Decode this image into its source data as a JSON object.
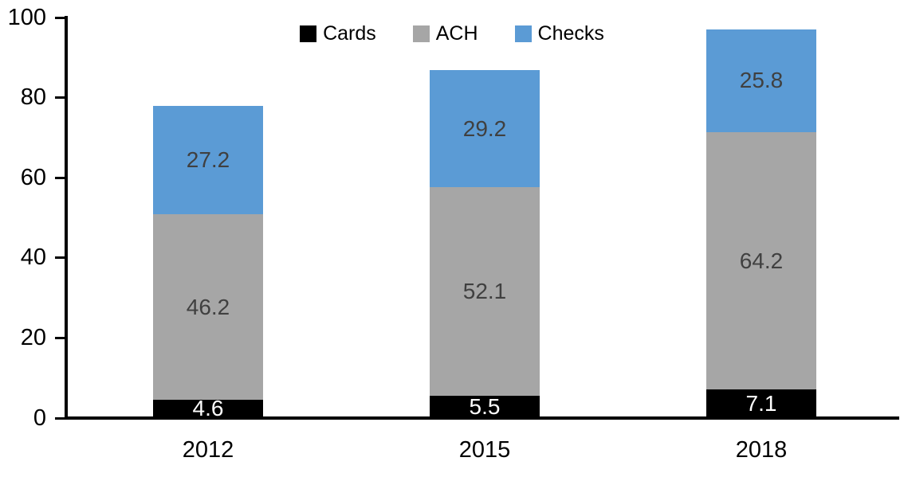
{
  "chart_data": {
    "type": "bar",
    "stacked": true,
    "title": "",
    "xlabel": "",
    "ylabel": "",
    "categories": [
      "2012",
      "2015",
      "2018"
    ],
    "series": [
      {
        "name": "Cards",
        "color": "#000000",
        "label_color": "#ffffff",
        "values": [
          4.6,
          5.5,
          7.1
        ]
      },
      {
        "name": "ACH",
        "color": "#a6a6a6",
        "label_color": "#404040",
        "values": [
          46.2,
          52.1,
          64.2
        ]
      },
      {
        "name": "Checks",
        "color": "#5b9bd5",
        "label_color": "#404040",
        "values": [
          27.2,
          29.2,
          25.8
        ]
      }
    ],
    "y_ticks": [
      0,
      20,
      40,
      60,
      80,
      100
    ],
    "ylim": [
      0,
      100
    ],
    "legend_position": "top",
    "grid": false,
    "axis_color": "#000000",
    "background_color": "#ffffff"
  }
}
